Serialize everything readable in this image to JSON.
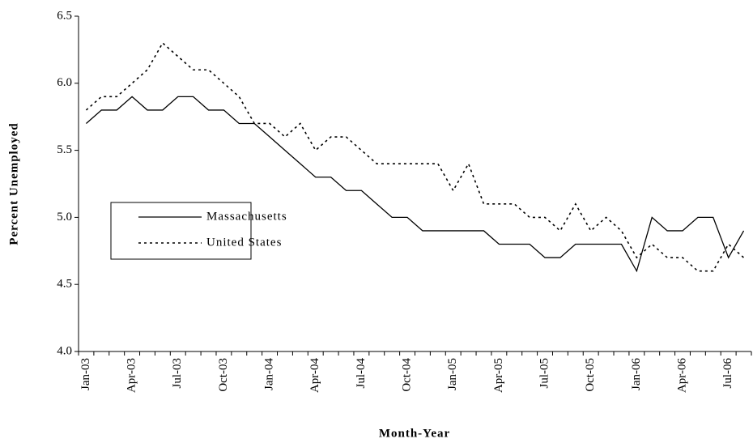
{
  "chart_data": {
    "type": "line",
    "x_label": "Month-Year",
    "y_label": "Percent Unemployed",
    "categories": [
      "Jan-03",
      null,
      null,
      "Apr-03",
      null,
      null,
      "Jul-03",
      null,
      null,
      "Oct-03",
      null,
      null,
      "Jan-04",
      null,
      null,
      "Apr-04",
      null,
      null,
      "Jul-04",
      null,
      null,
      "Oct-04",
      null,
      null,
      "Jan-05",
      null,
      null,
      "Apr-05",
      null,
      null,
      "Jul-05",
      null,
      null,
      "Oct-05",
      null,
      null,
      "Jan-06",
      null,
      null,
      "Apr-06",
      null,
      null,
      "Jul-06",
      null
    ],
    "series": [
      {
        "name": "Massachusetts",
        "color": "#000000",
        "line_style": "solid",
        "values": [
          5.7,
          5.8,
          5.8,
          5.9,
          5.8,
          5.8,
          5.9,
          5.9,
          5.8,
          5.8,
          5.7,
          5.7,
          5.6,
          5.5,
          5.4,
          5.3,
          5.3,
          5.2,
          5.2,
          5.1,
          5.0,
          5.0,
          4.9,
          4.9,
          4.9,
          4.9,
          4.9,
          4.8,
          4.8,
          4.8,
          4.7,
          4.7,
          4.8,
          4.8,
          4.8,
          4.8,
          4.6,
          5.0,
          4.9,
          4.9,
          5.0,
          5.0,
          4.7,
          4.9
        ]
      },
      {
        "name": "United States",
        "color": "#000000",
        "line_style": "dotted",
        "values": [
          5.8,
          5.9,
          5.9,
          6.0,
          6.1,
          6.3,
          6.2,
          6.1,
          6.1,
          6.0,
          5.9,
          5.7,
          5.7,
          5.6,
          5.7,
          5.5,
          5.6,
          5.6,
          5.5,
          5.4,
          5.4,
          5.4,
          5.4,
          5.4,
          5.2,
          5.4,
          5.1,
          5.1,
          5.1,
          5.0,
          5.0,
          4.9,
          5.1,
          4.9,
          5.0,
          4.9,
          4.7,
          4.8,
          4.7,
          4.7,
          4.6,
          4.6,
          4.8,
          4.7
        ]
      }
    ],
    "ylim": [
      4.0,
      6.5
    ],
    "yticks": [
      {
        "value": 4.0,
        "label": "4.0"
      },
      4.5,
      {
        "value": 5.0,
        "label": "5.0"
      },
      5.5,
      {
        "value": 6.0,
        "label": "6.0"
      },
      6.5
    ],
    "grid": false,
    "legend_position": "left"
  }
}
